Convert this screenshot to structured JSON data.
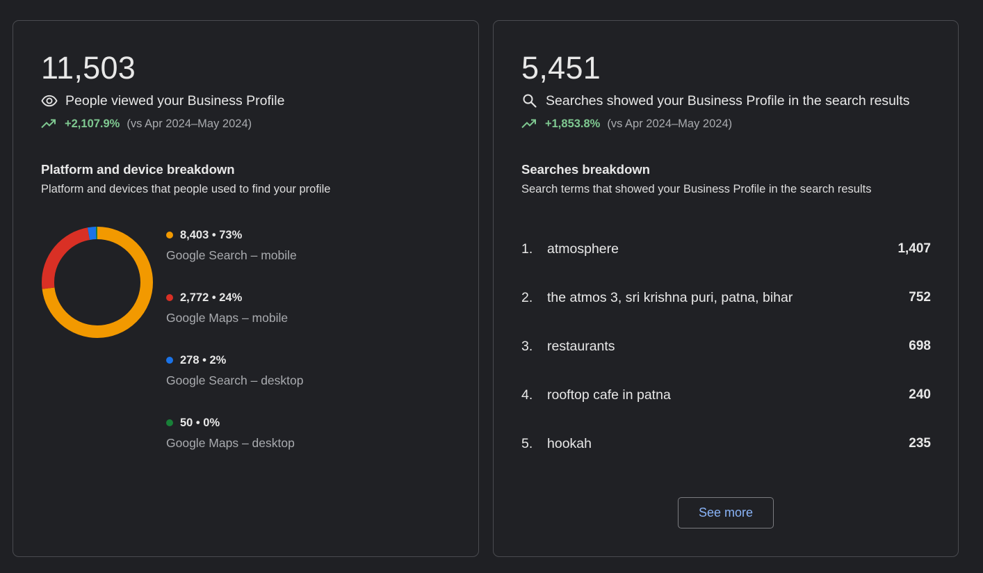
{
  "views_card": {
    "total": "11,503",
    "metric_label": "People viewed your Business Profile",
    "metric_icon": "eye-icon",
    "change": "+2,107.9%",
    "compare": "(vs Apr 2024–May 2024)",
    "section_title": "Platform and device breakdown",
    "section_subtitle": "Platform and devices that people used to find your profile",
    "breakdown": [
      {
        "value": "8,403 • 73%",
        "label": "Google Search – mobile",
        "color": "#f29900",
        "count": 8403
      },
      {
        "value": "2,772 • 24%",
        "label": "Google Maps – mobile",
        "color": "#d93025",
        "count": 2772
      },
      {
        "value": "278 • 2%",
        "label": "Google Search – desktop",
        "color": "#1a73e8",
        "count": 278
      },
      {
        "value": "50 • 0%",
        "label": "Google Maps – desktop",
        "color": "#188038",
        "count": 50
      }
    ]
  },
  "searches_card": {
    "total": "5,451",
    "metric_label": "Searches showed your Business Profile in the search results",
    "metric_icon": "search-icon",
    "change": "+1,853.8%",
    "compare": "(vs Apr 2024–May 2024)",
    "section_title": "Searches breakdown",
    "section_subtitle": "Search terms that showed your Business Profile in the search results",
    "terms": [
      {
        "rank": "1.",
        "term": "atmosphere",
        "count": "1,407"
      },
      {
        "rank": "2.",
        "term": "the atmos 3, sri krishna puri, patna, bihar",
        "count": "752"
      },
      {
        "rank": "3.",
        "term": "restaurants",
        "count": "698"
      },
      {
        "rank": "4.",
        "term": "rooftop cafe in patna",
        "count": "240"
      },
      {
        "rank": "5.",
        "term": "hookah",
        "count": "235"
      }
    ],
    "see_more_label": "See more"
  },
  "colors": {
    "background": "#1f2024",
    "positive": "#7fc991",
    "link": "#8ab4f8"
  }
}
